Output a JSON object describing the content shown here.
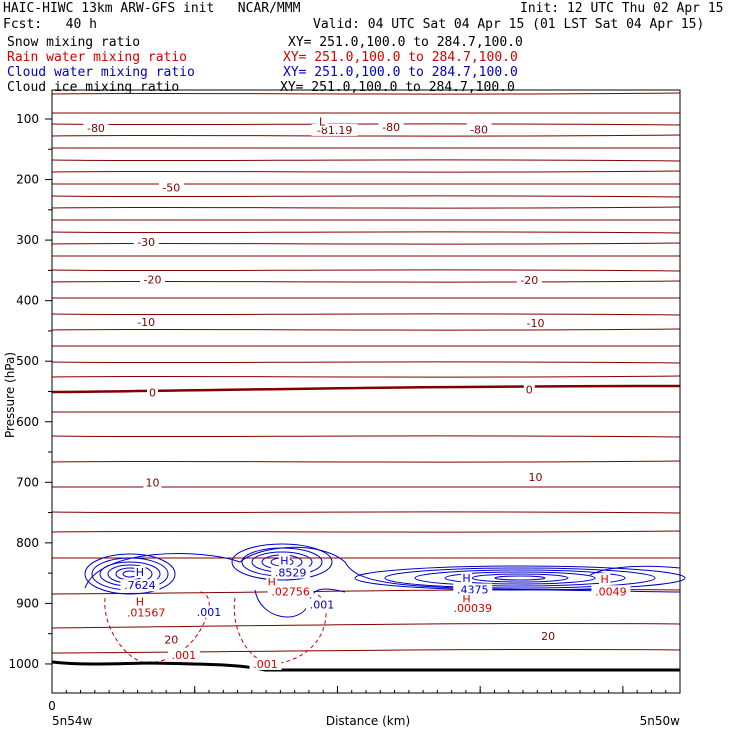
{
  "header": {
    "title": "HAIC-HIWC 13km ARW-GFS init   NCAR/MMM",
    "init": "Init: 12 UTC Thu 02 Apr 15",
    "fcst": "Fcst:   40 h",
    "valid": "Valid: 04 UTC Sat 04 Apr 15 (01 LST Sat 04 Apr 15)",
    "fields": [
      {
        "name": "Snow mixing ratio",
        "xy": "XY= 251.0,100.0 to 284.7,100.0",
        "color": "#000000"
      },
      {
        "name": "Rain water mixing ratio",
        "xy": "XY= 251.0,100.0 to 284.7,100.0",
        "color": "#d40000"
      },
      {
        "name": "Cloud water mixing ratio",
        "xy": "XY= 251.0,100.0 to 284.7,100.0",
        "color": "#0000c8"
      },
      {
        "name": "Cloud ice mixing ratio",
        "xy": "XY= 251.0,100.0 to 284.7,100.0",
        "color": "#000000"
      }
    ]
  },
  "chart_data": {
    "type": "contour-cross-section",
    "xlabel": "Distance (km)",
    "ylabel": "Pressure (hPa)",
    "x_tick_labels": [
      {
        "x": 0,
        "label": "0"
      }
    ],
    "x_endpoint_labels": [
      "5n54w",
      "5n50w"
    ],
    "y_ticks": [
      100,
      200,
      300,
      400,
      500,
      600,
      700,
      800,
      900,
      1000
    ],
    "ylim": [
      1050,
      80
    ],
    "colors": {
      "temperature": "#800000",
      "rain": "#d40000",
      "cloud_water": "#0000c8",
      "terrain": "#000000"
    },
    "temperature_labels": [
      {
        "label": "-80",
        "x": 0.07,
        "p": 115
      },
      {
        "label": "-80",
        "x": 0.54,
        "p": 113
      },
      {
        "label": "-80",
        "x": 0.68,
        "p": 117
      },
      {
        "label": "-81.19",
        "x": 0.45,
        "p": 118
      },
      {
        "label": "L",
        "x": 0.43,
        "p": 104
      },
      {
        "label": "-50",
        "x": 0.19,
        "p": 213
      },
      {
        "label": "-30",
        "x": 0.15,
        "p": 303
      },
      {
        "label": "-20",
        "x": 0.16,
        "p": 365
      },
      {
        "label": "-20",
        "x": 0.76,
        "p": 366
      },
      {
        "label": "-10",
        "x": 0.15,
        "p": 435
      },
      {
        "label": "-10",
        "x": 0.77,
        "p": 437
      },
      {
        "label": "0",
        "x": 0.16,
        "p": 552
      },
      {
        "label": "0",
        "x": 0.76,
        "p": 547
      },
      {
        "label": "10",
        "x": 0.16,
        "p": 700
      },
      {
        "label": "10",
        "x": 0.77,
        "p": 691
      },
      {
        "label": "20",
        "x": 0.19,
        "p": 960
      },
      {
        "label": "20",
        "x": 0.79,
        "p": 954
      }
    ],
    "cloud_water_labels": [
      {
        "label": "H",
        "x": 0.14,
        "p": 848
      },
      {
        "label": ".7624",
        "x": 0.14,
        "p": 870
      },
      {
        "label": "H",
        "x": 0.37,
        "p": 829
      },
      {
        "label": ".8529",
        "x": 0.38,
        "p": 849
      },
      {
        "label": "H",
        "x": 0.66,
        "p": 858
      },
      {
        "label": ".4375",
        "x": 0.67,
        "p": 877
      },
      {
        "label": "H",
        "x": 0.88,
        "p": 860
      },
      {
        "label": ".001",
        "x": 0.25,
        "p": 914
      },
      {
        "label": ".001",
        "x": 0.43,
        "p": 902
      }
    ],
    "rain_labels": [
      {
        "label": "H",
        "x": 0.14,
        "p": 897
      },
      {
        "label": ".01567",
        "x": 0.15,
        "p": 915
      },
      {
        "label": "H",
        "x": 0.35,
        "p": 865
      },
      {
        "label": ".02756",
        "x": 0.38,
        "p": 880
      },
      {
        "label": "H",
        "x": 0.66,
        "p": 893
      },
      {
        "label": ".00039",
        "x": 0.67,
        "p": 908
      },
      {
        "label": "H",
        "x": 0.88,
        "p": 860
      },
      {
        "label": ".0049",
        "x": 0.89,
        "p": 880
      },
      {
        "label": ".001",
        "x": 0.21,
        "p": 985
      },
      {
        "label": ".001",
        "x": 0.34,
        "p": 1000
      }
    ]
  }
}
